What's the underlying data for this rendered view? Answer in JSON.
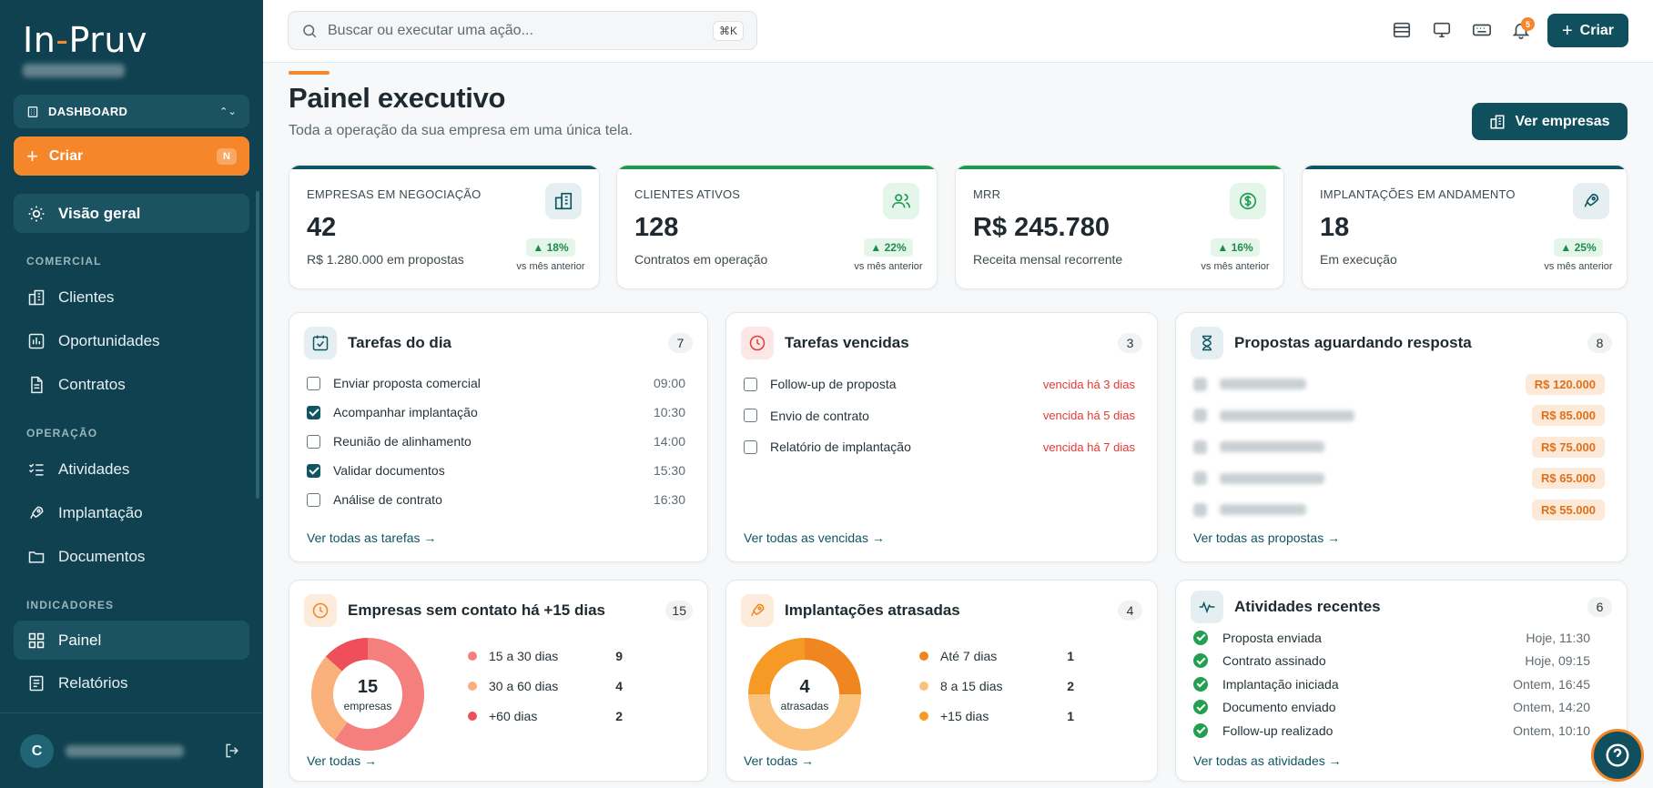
{
  "brand": {
    "name_part1": "In",
    "name_dash": "-",
    "name_part2": "Pruv"
  },
  "sidebar": {
    "dashboard_select": "DASHBOARD",
    "criar_label": "Criar",
    "criar_shortcut": "N",
    "overview": "Visão geral",
    "sections": {
      "comercial": "COMERCIAL",
      "operacao": "OPERAÇÃO",
      "indicadores": "INDICADORES"
    },
    "items": {
      "clientes": "Clientes",
      "oportunidades": "Oportunidades",
      "contratos": "Contratos",
      "atividades": "Atividades",
      "implantacao": "Implantação",
      "documentos": "Documentos",
      "painel": "Painel",
      "relatorios": "Relatórios"
    },
    "user_initial": "C"
  },
  "topbar": {
    "search_placeholder": "Buscar ou executar uma ação...",
    "search_shortcut": "⌘K",
    "notification_count": "5",
    "criar_label": "Criar"
  },
  "page": {
    "title": "Painel executivo",
    "subtitle": "Toda a operação da sua empresa em uma única tela.",
    "ver_empresas": "Ver empresas"
  },
  "kpis": [
    {
      "label": "EMPRESAS EM NEGOCIAÇÃO",
      "value": "42",
      "sub": "R$ 1.280.000 em propostas",
      "delta": "18%",
      "vs": "vs mês anterior",
      "bar_color": "#0f5563"
    },
    {
      "label": "CLIENTES ATIVOS",
      "value": "128",
      "sub": "Contratos em operação",
      "delta": "22%",
      "vs": "vs mês anterior",
      "bar_color": "#1f9a52"
    },
    {
      "label": "MRR",
      "value": "R$ 245.780",
      "sub": "Receita mensal recorrente",
      "delta": "16%",
      "vs": "vs mês anterior",
      "bar_color": "#1f9a52"
    },
    {
      "label": "IMPLANTAÇÕES EM ANDAMENTO",
      "value": "18",
      "sub": "Em execução",
      "delta": "25%",
      "vs": "vs mês anterior",
      "bar_color": "#0f5563"
    }
  ],
  "tarefas_dia": {
    "title": "Tarefas do dia",
    "count": "7",
    "items": [
      {
        "label": "Enviar proposta comercial",
        "time": "09:00",
        "done": false
      },
      {
        "label": "Acompanhar implantação",
        "time": "10:30",
        "done": true
      },
      {
        "label": "Reunião de alinhamento",
        "time": "14:00",
        "done": false
      },
      {
        "label": "Validar documentos",
        "time": "15:30",
        "done": true
      },
      {
        "label": "Análise de contrato",
        "time": "16:30",
        "done": false
      }
    ],
    "link": "Ver todas as tarefas →"
  },
  "tarefas_vencidas": {
    "title": "Tarefas vencidas",
    "count": "3",
    "items": [
      {
        "label": "Follow-up de proposta",
        "status": "vencida há 3 dias"
      },
      {
        "label": "Envio de contrato",
        "status": "vencida há 5 dias"
      },
      {
        "label": "Relatório de implantação",
        "status": "vencida há 7 dias"
      }
    ],
    "link": "Ver todas as vencidas →"
  },
  "propostas": {
    "title": "Propostas aguardando resposta",
    "count": "8",
    "values": [
      "R$ 120.000",
      "R$ 85.000",
      "R$ 75.000",
      "R$ 65.000",
      "R$ 55.000"
    ],
    "link": "Ver todas as propostas →"
  },
  "sem_contato": {
    "title": "Empresas sem contato há +15 dias",
    "count": "15",
    "center_value": "15",
    "center_label": "empresas",
    "legend": [
      {
        "label": "15 a 30 dias",
        "value": 9,
        "color": "#f47f7c"
      },
      {
        "label": "30 a 60 dias",
        "value": 4,
        "color": "#f9b07a"
      },
      {
        "label": "+60 dias",
        "value": 2,
        "color": "#ee4f5a"
      }
    ],
    "link": "Ver todas →"
  },
  "implantacoes_atrasadas": {
    "title": "Implantações atrasadas",
    "count": "4",
    "center_value": "4",
    "center_label": "atrasadas",
    "legend": [
      {
        "label": "Até 7 dias",
        "value": 1,
        "color": "#f0861f"
      },
      {
        "label": "8 a 15 dias",
        "value": 2,
        "color": "#fbc27d"
      },
      {
        "label": "+15 dias",
        "value": 1,
        "color": "#f79a25"
      }
    ],
    "link": "Ver todas →"
  },
  "atividades": {
    "title": "Atividades recentes",
    "count": "6",
    "items": [
      {
        "label": "Proposta enviada",
        "time": "Hoje, 11:30"
      },
      {
        "label": "Contrato assinado",
        "time": "Hoje, 09:15"
      },
      {
        "label": "Implantação iniciada",
        "time": "Ontem, 16:45"
      },
      {
        "label": "Documento enviado",
        "time": "Ontem, 14:20"
      },
      {
        "label": "Follow-up realizado",
        "time": "Ontem, 10:10"
      }
    ],
    "link": "Ver todas as atividades →"
  }
}
